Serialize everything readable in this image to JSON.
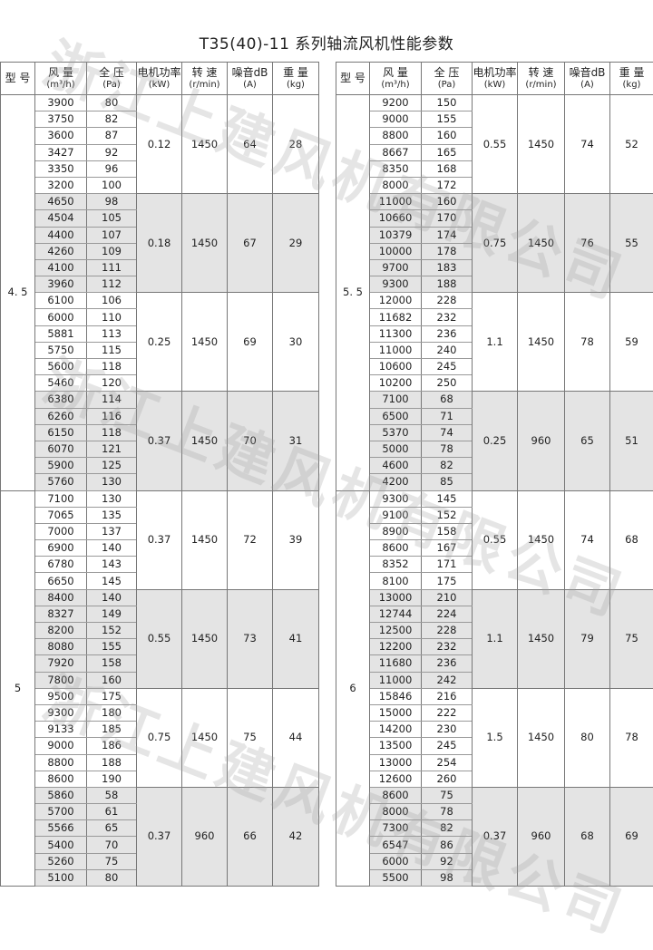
{
  "title": "T35(40)-11 系列轴流风机性能参数",
  "watermark": "浙江上建风机有限公司",
  "headers": {
    "model": "型 号",
    "flow": "风 量",
    "flow_unit": "(m³/h)",
    "pressure": "全 压",
    "pressure_unit": "(Pa)",
    "power": "电机功率",
    "power_unit": "(kW)",
    "speed": "转 速",
    "speed_unit": "(r/min)",
    "noise": "噪音dB",
    "noise_unit": "(A)",
    "weight": "重 量",
    "weight_unit": "(kg)"
  },
  "shade_color": "#e4e4e4",
  "tables": [
    {
      "models": [
        {
          "model": "4. 5",
          "groups": [
            {
              "rows": [
                [
                  "3900",
                  "80"
                ],
                [
                  "3750",
                  "82"
                ],
                [
                  "3600",
                  "87"
                ],
                [
                  "3427",
                  "92"
                ],
                [
                  "3350",
                  "96"
                ],
                [
                  "3200",
                  "100"
                ]
              ],
              "power": "0.12",
              "speed": "1450",
              "noise": "64",
              "weight": "28"
            },
            {
              "rows": [
                [
                  "4650",
                  "98"
                ],
                [
                  "4504",
                  "105"
                ],
                [
                  "4400",
                  "107"
                ],
                [
                  "4260",
                  "109"
                ],
                [
                  "4100",
                  "111"
                ],
                [
                  "3960",
                  "112"
                ]
              ],
              "power": "0.18",
              "speed": "1450",
              "noise": "67",
              "weight": "29"
            },
            {
              "rows": [
                [
                  "6100",
                  "106"
                ],
                [
                  "6000",
                  "110"
                ],
                [
                  "5881",
                  "113"
                ],
                [
                  "5750",
                  "115"
                ],
                [
                  "5600",
                  "118"
                ],
                [
                  "5460",
                  "120"
                ]
              ],
              "power": "0.25",
              "speed": "1450",
              "noise": "69",
              "weight": "30"
            },
            {
              "rows": [
                [
                  "6380",
                  "114"
                ],
                [
                  "6260",
                  "116"
                ],
                [
                  "6150",
                  "118"
                ],
                [
                  "6070",
                  "121"
                ],
                [
                  "5900",
                  "125"
                ],
                [
                  "5760",
                  "130"
                ]
              ],
              "power": "0.37",
              "speed": "1450",
              "noise": "70",
              "weight": "31"
            }
          ]
        },
        {
          "model": "5",
          "groups": [
            {
              "rows": [
                [
                  "7100",
                  "130"
                ],
                [
                  "7065",
                  "135"
                ],
                [
                  "7000",
                  "137"
                ],
                [
                  "6900",
                  "140"
                ],
                [
                  "6780",
                  "143"
                ],
                [
                  "6650",
                  "145"
                ]
              ],
              "power": "0.37",
              "speed": "1450",
              "noise": "72",
              "weight": "39"
            },
            {
              "rows": [
                [
                  "8400",
                  "140"
                ],
                [
                  "8327",
                  "149"
                ],
                [
                  "8200",
                  "152"
                ],
                [
                  "8080",
                  "155"
                ],
                [
                  "7920",
                  "158"
                ],
                [
                  "7800",
                  "160"
                ]
              ],
              "power": "0.55",
              "speed": "1450",
              "noise": "73",
              "weight": "41"
            },
            {
              "rows": [
                [
                  "9500",
                  "175"
                ],
                [
                  "9300",
                  "180"
                ],
                [
                  "9133",
                  "185"
                ],
                [
                  "9000",
                  "186"
                ],
                [
                  "8800",
                  "188"
                ],
                [
                  "8600",
                  "190"
                ]
              ],
              "power": "0.75",
              "speed": "1450",
              "noise": "75",
              "weight": "44"
            },
            {
              "rows": [
                [
                  "5860",
                  "58"
                ],
                [
                  "5700",
                  "61"
                ],
                [
                  "5566",
                  "65"
                ],
                [
                  "5400",
                  "70"
                ],
                [
                  "5260",
                  "75"
                ],
                [
                  "5100",
                  "80"
                ]
              ],
              "power": "0.37",
              "speed": "960",
              "noise": "66",
              "weight": "42"
            }
          ]
        }
      ]
    },
    {
      "models": [
        {
          "model": "5. 5",
          "groups": [
            {
              "rows": [
                [
                  "9200",
                  "150"
                ],
                [
                  "9000",
                  "155"
                ],
                [
                  "8800",
                  "160"
                ],
                [
                  "8667",
                  "165"
                ],
                [
                  "8350",
                  "168"
                ],
                [
                  "8000",
                  "172"
                ]
              ],
              "power": "0.55",
              "speed": "1450",
              "noise": "74",
              "weight": "52"
            },
            {
              "rows": [
                [
                  "11000",
                  "160"
                ],
                [
                  "10660",
                  "170"
                ],
                [
                  "10379",
                  "174"
                ],
                [
                  "10000",
                  "178"
                ],
                [
                  "9700",
                  "183"
                ],
                [
                  "9300",
                  "188"
                ]
              ],
              "power": "0.75",
              "speed": "1450",
              "noise": "76",
              "weight": "55"
            },
            {
              "rows": [
                [
                  "12000",
                  "228"
                ],
                [
                  "11682",
                  "232"
                ],
                [
                  "11300",
                  "236"
                ],
                [
                  "11000",
                  "240"
                ],
                [
                  "10600",
                  "245"
                ],
                [
                  "10200",
                  "250"
                ]
              ],
              "power": "1.1",
              "speed": "1450",
              "noise": "78",
              "weight": "59"
            },
            {
              "rows": [
                [
                  "7100",
                  "68"
                ],
                [
                  "6500",
                  "71"
                ],
                [
                  "5370",
                  "74"
                ],
                [
                  "5000",
                  "78"
                ],
                [
                  "4600",
                  "82"
                ],
                [
                  "4200",
                  "85"
                ]
              ],
              "power": "0.25",
              "speed": "960",
              "noise": "65",
              "weight": "51"
            }
          ]
        },
        {
          "model": "6",
          "groups": [
            {
              "rows": [
                [
                  "9300",
                  "145"
                ],
                [
                  "9100",
                  "152"
                ],
                [
                  "8900",
                  "158"
                ],
                [
                  "8600",
                  "167"
                ],
                [
                  "8352",
                  "171"
                ],
                [
                  "8100",
                  "175"
                ]
              ],
              "power": "0.55",
              "speed": "1450",
              "noise": "74",
              "weight": "68"
            },
            {
              "rows": [
                [
                  "13000",
                  "210"
                ],
                [
                  "12744",
                  "224"
                ],
                [
                  "12500",
                  "228"
                ],
                [
                  "12200",
                  "232"
                ],
                [
                  "11680",
                  "236"
                ],
                [
                  "11000",
                  "242"
                ]
              ],
              "power": "1.1",
              "speed": "1450",
              "noise": "79",
              "weight": "75"
            },
            {
              "rows": [
                [
                  "15846",
                  "216"
                ],
                [
                  "15000",
                  "222"
                ],
                [
                  "14200",
                  "230"
                ],
                [
                  "13500",
                  "245"
                ],
                [
                  "13000",
                  "254"
                ],
                [
                  "12600",
                  "260"
                ]
              ],
              "power": "1.5",
              "speed": "1450",
              "noise": "80",
              "weight": "78"
            },
            {
              "rows": [
                [
                  "8600",
                  "75"
                ],
                [
                  "8000",
                  "78"
                ],
                [
                  "7300",
                  "82"
                ],
                [
                  "6547",
                  "86"
                ],
                [
                  "6000",
                  "92"
                ],
                [
                  "5500",
                  "98"
                ]
              ],
              "power": "0.37",
              "speed": "960",
              "noise": "68",
              "weight": "69"
            }
          ]
        }
      ]
    }
  ]
}
